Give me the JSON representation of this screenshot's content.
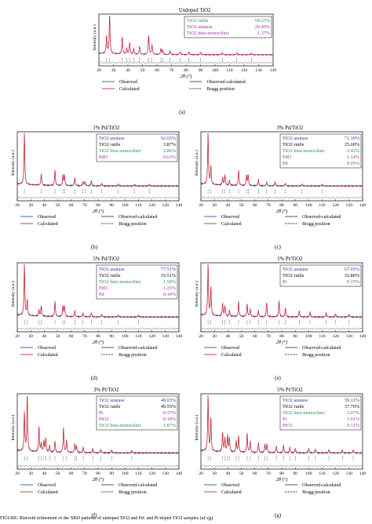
{
  "common": {
    "ylabel": "Intensity (a.u.)",
    "xlabel": "2θ (°)",
    "xticks": [
      "20",
      "30",
      "40",
      "50",
      "60",
      "70",
      "80",
      "90",
      "100",
      "110",
      "120",
      "130",
      "140"
    ],
    "legend": {
      "observed": "Observed",
      "calculated": "Calculated",
      "diff": "Observed-calculated",
      "bragg": "Bragg position"
    },
    "colors": {
      "observed": "#3a4fa8",
      "calculated": "#d9262a",
      "diff": "#555555",
      "bragg": "#333333",
      "green": "#2e8b57",
      "purple": "#9b30a8",
      "blue": "#2b3f9e"
    }
  },
  "caption": "FIGURE: Rietveld refinement of the XRD patterns of undoped TiO2 and Pd- and Pt-doped TiO2 samples (a)–(g).",
  "chart_data": [
    {
      "id": "a",
      "type": "line",
      "title": "Undoped TiO2",
      "panel_label": "(a)",
      "phases": [
        {
          "name": "TiO2 rutile",
          "value": "69.23%",
          "color": "green"
        },
        {
          "name": "TiO2 anatase",
          "value": "29.40%",
          "color": "purple"
        },
        {
          "name": "TiO2 beta monoclinic",
          "value": "1.37%",
          "color": "purple"
        }
      ],
      "peaks": [
        [
          25.3,
          0.45
        ],
        [
          27.4,
          1.0
        ],
        [
          36.1,
          0.45
        ],
        [
          39.2,
          0.15
        ],
        [
          41.2,
          0.3
        ],
        [
          44.0,
          0.15
        ],
        [
          48.0,
          0.2
        ],
        [
          54.3,
          0.5
        ],
        [
          56.6,
          0.25
        ],
        [
          62.7,
          0.15
        ],
        [
          64.0,
          0.12
        ],
        [
          69.0,
          0.1
        ],
        [
          76.0,
          0.08
        ],
        [
          82.0,
          0.07
        ],
        [
          90.0,
          0.06
        ],
        [
          105.0,
          0.05
        ],
        [
          115.0,
          0.05
        ],
        [
          125,
          0.04
        ]
      ]
    },
    {
      "id": "b",
      "type": "line",
      "title": "1% Pd/TiO2",
      "panel_label": "(b)",
      "phases": [
        {
          "name": "TiO2 anatase",
          "value": "92.65%",
          "color": "blue"
        },
        {
          "name": "TiO2 rutile",
          "value": "3.87%",
          "color": "black"
        },
        {
          "name": "TiO2 beta monoclinic",
          "value": "2.86%",
          "color": "green"
        },
        {
          "name": "PdO",
          "value": "0.63%",
          "color": "purple"
        }
      ],
      "peaks": [
        [
          25.3,
          1.0
        ],
        [
          37.8,
          0.22
        ],
        [
          48.0,
          0.3
        ],
        [
          53.9,
          0.2
        ],
        [
          55.1,
          0.2
        ],
        [
          62.7,
          0.15
        ],
        [
          68.8,
          0.08
        ],
        [
          70.3,
          0.08
        ],
        [
          75.0,
          0.1
        ],
        [
          82.7,
          0.05
        ],
        [
          95,
          0.04
        ],
        [
          107,
          0.03
        ],
        [
          118,
          0.03
        ]
      ]
    },
    {
      "id": "c",
      "type": "line",
      "title": "3% Pd/TiO2",
      "panel_label": "(c)",
      "phases": [
        {
          "name": "TiO2 anatase",
          "value": "71.39%",
          "color": "blue"
        },
        {
          "name": "TiO2 rutile",
          "value": "25.00%",
          "color": "black"
        },
        {
          "name": "TiO2 beta monoclinic",
          "value": "2.42%",
          "color": "green"
        },
        {
          "name": "PdO",
          "value": "1.14%",
          "color": "purple"
        },
        {
          "name": "Pd",
          "value": "0.05%",
          "color": "purple"
        }
      ],
      "peaks": [
        [
          25.3,
          1.0
        ],
        [
          27.4,
          0.35
        ],
        [
          36.1,
          0.15
        ],
        [
          37.8,
          0.2
        ],
        [
          41.2,
          0.1
        ],
        [
          48.0,
          0.3
        ],
        [
          53.9,
          0.2
        ],
        [
          55.1,
          0.2
        ],
        [
          62.7,
          0.12
        ],
        [
          68.8,
          0.08
        ],
        [
          75.0,
          0.08
        ],
        [
          82.7,
          0.05
        ],
        [
          95,
          0.04
        ],
        [
          110,
          0.03
        ]
      ]
    },
    {
      "id": "d",
      "type": "line",
      "title": "5% Pd/TiO2",
      "panel_label": "(d)",
      "phases": [
        {
          "name": "TiO2 anatase",
          "value": "77.51%",
          "color": "blue"
        },
        {
          "name": "TiO2 rutile",
          "value": "19.51%",
          "color": "black"
        },
        {
          "name": "TiO2 beta monoclinic",
          "value": "1.59%",
          "color": "green"
        },
        {
          "name": "PdO",
          "value": "1.25%",
          "color": "purple"
        },
        {
          "name": "Pd",
          "value": "0.14%",
          "color": "purple"
        }
      ],
      "peaks": [
        [
          25.3,
          1.0
        ],
        [
          27.4,
          0.3
        ],
        [
          36.1,
          0.12
        ],
        [
          37.8,
          0.2
        ],
        [
          48.0,
          0.3
        ],
        [
          53.9,
          0.2
        ],
        [
          55.1,
          0.2
        ],
        [
          62.7,
          0.12
        ],
        [
          68.8,
          0.08
        ],
        [
          75.0,
          0.08
        ],
        [
          82.7,
          0.05
        ],
        [
          95,
          0.04
        ],
        [
          110,
          0.03
        ]
      ]
    },
    {
      "id": "e",
      "type": "line",
      "title": "1% Pt/TiO2",
      "panel_label": "(e)",
      "phases": [
        {
          "name": "TiO2 anatase",
          "value": "67.05%",
          "color": "blue"
        },
        {
          "name": "TiO2 rutile",
          "value": "32.80%",
          "color": "black"
        },
        {
          "name": "Pt",
          "value": "0.15%",
          "color": "purple"
        }
      ],
      "peaks": [
        [
          25.3,
          1.0
        ],
        [
          27.4,
          0.55
        ],
        [
          36.1,
          0.25
        ],
        [
          37.8,
          0.2
        ],
        [
          41.2,
          0.12
        ],
        [
          48.0,
          0.3
        ],
        [
          54.3,
          0.25
        ],
        [
          56.6,
          0.15
        ],
        [
          62.7,
          0.12
        ],
        [
          68.8,
          0.28
        ],
        [
          78,
          0.32
        ],
        [
          82.7,
          0.18
        ],
        [
          93,
          0.12
        ],
        [
          101,
          0.1
        ],
        [
          113,
          0.08
        ],
        [
          120,
          0.06
        ],
        [
          130,
          0.05
        ]
      ]
    },
    {
      "id": "f",
      "type": "line",
      "title": "3% Pt/TiO2",
      "panel_label": "(f)",
      "phases": [
        {
          "name": "TiO2 anatase",
          "value": "48.03%",
          "color": "blue"
        },
        {
          "name": "TiO2 rutile",
          "value": "49.55%",
          "color": "black"
        },
        {
          "name": "Pt",
          "value": "0.37%",
          "color": "purple"
        },
        {
          "name": "PtO2",
          "value": "0.18%",
          "color": "purple"
        },
        {
          "name": "TiO2 beta monoclinic",
          "value": "1.87%",
          "color": "green"
        }
      ],
      "peaks": [
        [
          25.3,
          0.7
        ],
        [
          27.4,
          1.0
        ],
        [
          36.1,
          0.45
        ],
        [
          37.8,
          0.15
        ],
        [
          39.8,
          0.2
        ],
        [
          41.2,
          0.25
        ],
        [
          44.0,
          0.12
        ],
        [
          48.0,
          0.2
        ],
        [
          54.3,
          0.45
        ],
        [
          56.6,
          0.22
        ],
        [
          62.7,
          0.15
        ],
        [
          64.0,
          0.12
        ],
        [
          69.0,
          0.1
        ],
        [
          76.0,
          0.08
        ],
        [
          82.0,
          0.06
        ],
        [
          90,
          0.05
        ],
        [
          105,
          0.04
        ]
      ]
    },
    {
      "id": "g",
      "type": "line",
      "title": "5% Pt/TiO2",
      "panel_label": "(g)",
      "phases": [
        {
          "name": "TiO2 anatase",
          "value": "59.11%",
          "color": "blue"
        },
        {
          "name": "TiO2 rutile",
          "value": "37.70%",
          "color": "black"
        },
        {
          "name": "TiO2 beta monoclinic",
          "value": "2.07%",
          "color": "green"
        },
        {
          "name": "Pt",
          "value": "1.01%",
          "color": "purple"
        },
        {
          "name": "PtO2",
          "value": "0.11%",
          "color": "purple"
        }
      ],
      "peaks": [
        [
          25.3,
          1.0
        ],
        [
          27.4,
          0.6
        ],
        [
          36.1,
          0.35
        ],
        [
          37.8,
          0.25
        ],
        [
          39.8,
          0.3
        ],
        [
          41.2,
          0.25
        ],
        [
          46.2,
          0.2
        ],
        [
          48.0,
          0.3
        ],
        [
          54.3,
          0.35
        ],
        [
          56.6,
          0.2
        ],
        [
          62.7,
          0.18
        ],
        [
          67.5,
          0.15
        ],
        [
          69.0,
          0.15
        ],
        [
          76.0,
          0.12
        ],
        [
          81.3,
          0.14
        ],
        [
          86,
          0.1
        ],
        [
          90,
          0.08
        ],
        [
          100,
          0.08
        ],
        [
          105,
          0.07
        ],
        [
          115,
          0.06
        ],
        [
          125,
          0.05
        ],
        [
          133,
          0.05
        ]
      ]
    }
  ]
}
